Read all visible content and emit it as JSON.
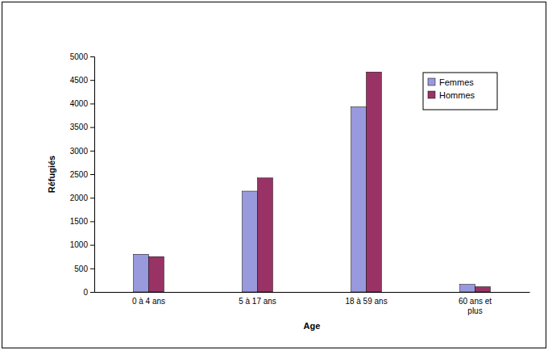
{
  "chart_data": {
    "type": "bar",
    "x_label": "Age",
    "y_label": "Réfugiés",
    "categories": [
      "0 à 4 ans",
      "5 à 17 ans",
      "18 à 59 ans",
      "60 ans et plus"
    ],
    "series": [
      {
        "name": "Femmes",
        "color": "#9999dd",
        "values": [
          800,
          2140,
          3930,
          160
        ]
      },
      {
        "name": "Hommes",
        "color": "#993366",
        "values": [
          750,
          2420,
          4670,
          110
        ]
      }
    ],
    "ylim": [
      0,
      5000
    ],
    "yticks": [
      0,
      500,
      1000,
      1500,
      2000,
      2500,
      3000,
      3500,
      4000,
      4500,
      5000
    ],
    "grid": false,
    "legend": "top-right"
  }
}
